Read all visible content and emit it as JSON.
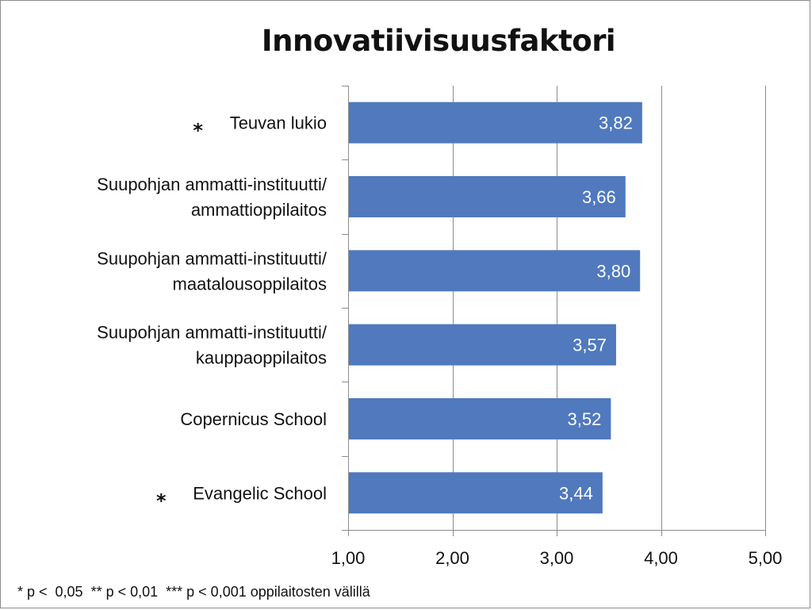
{
  "chart_data": {
    "type": "bar",
    "orientation": "horizontal",
    "title": "Innovatiivisuusfaktori",
    "categories": [
      {
        "lines": [
          "Teuvan lukio"
        ],
        "marker": "*"
      },
      {
        "lines": [
          "Suupohjan ammatti-instituutti/",
          "ammattioppilaitos"
        ],
        "marker": ""
      },
      {
        "lines": [
          "Suupohjan ammatti-instituutti/",
          "maatalousoppilaitos"
        ],
        "marker": ""
      },
      {
        "lines": [
          "Suupohjan ammatti-instituutti/",
          "kauppaoppilaitos"
        ],
        "marker": ""
      },
      {
        "lines": [
          "Copernicus School"
        ],
        "marker": ""
      },
      {
        "lines": [
          "Evangelic School"
        ],
        "marker": "*"
      }
    ],
    "values": [
      3.82,
      3.66,
      3.8,
      3.57,
      3.52,
      3.44
    ],
    "value_labels": [
      "3,82",
      "3,66",
      "3,80",
      "3,57",
      "3,52",
      "3,44"
    ],
    "xlim": [
      1,
      5
    ],
    "xticks": [
      1,
      2,
      3,
      4,
      5
    ],
    "xtick_labels": [
      "1,00",
      "2,00",
      "3,00",
      "4,00",
      "5,00"
    ],
    "grid": true,
    "bar_color": "#5079be",
    "grid_color": "#8c8c8c"
  },
  "footnote": "* p <  0,05  ** p < 0,01  *** p < 0,001 oppilaitosten välillä"
}
